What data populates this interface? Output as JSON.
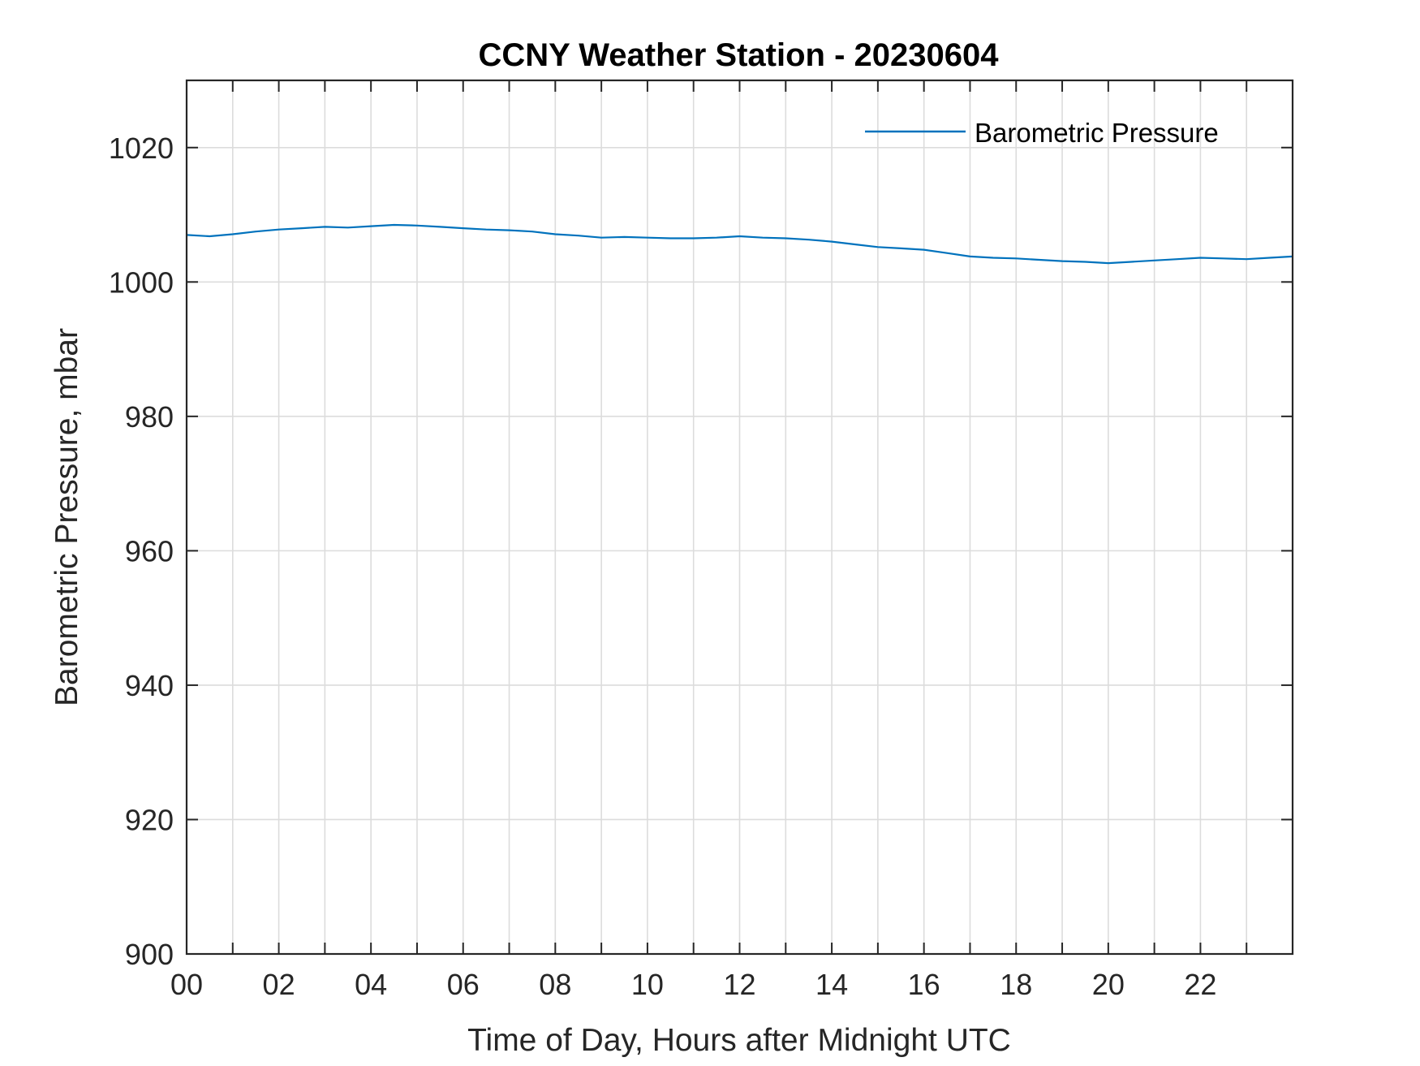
{
  "chart_data": {
    "type": "line",
    "title": "CCNY Weather Station - 20230604",
    "xlabel": "Time of Day, Hours after Midnight UTC",
    "ylabel": "Barometric Pressure, mbar",
    "xlim": [
      0,
      24
    ],
    "ylim": [
      900,
      1030
    ],
    "x_ticks": [
      0,
      2,
      4,
      6,
      8,
      10,
      12,
      14,
      16,
      18,
      20,
      22
    ],
    "x_tick_labels": [
      "00",
      "02",
      "04",
      "06",
      "08",
      "10",
      "12",
      "14",
      "16",
      "18",
      "20",
      "22"
    ],
    "y_ticks": [
      900,
      920,
      940,
      960,
      980,
      1000,
      1020
    ],
    "y_tick_labels": [
      "900",
      "920",
      "940",
      "960",
      "980",
      "1000",
      "1020"
    ],
    "grid": true,
    "grid_x_step_hours": 1,
    "legend_position": "top-right",
    "series_color": "#0072BD",
    "series": [
      {
        "name": "Barometric Pressure",
        "x": [
          0,
          0.5,
          1,
          1.5,
          2,
          2.5,
          3,
          3.5,
          4,
          4.5,
          5,
          5.5,
          6,
          6.5,
          7,
          7.5,
          8,
          8.5,
          9,
          9.5,
          10,
          10.5,
          11,
          11.5,
          12,
          12.5,
          13,
          13.5,
          14,
          14.5,
          15,
          15.5,
          16,
          16.5,
          17,
          17.5,
          18,
          18.5,
          19,
          19.5,
          20,
          20.5,
          21,
          21.5,
          22,
          22.5,
          23,
          23.5,
          24
        ],
        "values": [
          1007.0,
          1006.8,
          1007.1,
          1007.5,
          1007.8,
          1008.0,
          1008.2,
          1008.1,
          1008.3,
          1008.5,
          1008.4,
          1008.2,
          1008.0,
          1007.8,
          1007.7,
          1007.5,
          1007.1,
          1006.9,
          1006.6,
          1006.7,
          1006.6,
          1006.5,
          1006.5,
          1006.6,
          1006.8,
          1006.6,
          1006.5,
          1006.3,
          1006.0,
          1005.6,
          1005.2,
          1005.0,
          1004.8,
          1004.3,
          1003.8,
          1003.6,
          1003.5,
          1003.3,
          1003.1,
          1003.0,
          1002.8,
          1003.0,
          1003.2,
          1003.4,
          1003.6,
          1003.5,
          1003.4,
          1003.6,
          1003.8
        ]
      }
    ]
  }
}
